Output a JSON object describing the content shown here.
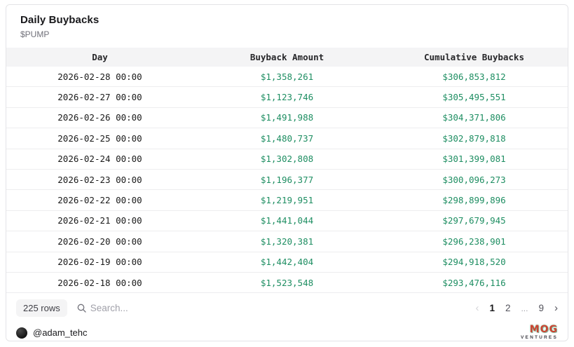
{
  "card": {
    "title": "Daily Buybacks",
    "subtitle": "$PUMP"
  },
  "table": {
    "columns": [
      "Day",
      "Buyback Amount",
      "Cumulative Buybacks"
    ],
    "rows": [
      {
        "day": "2026-02-28 00:00",
        "buyback": "$1,358,261",
        "cumulative": "$306,853,812"
      },
      {
        "day": "2026-02-27 00:00",
        "buyback": "$1,123,746",
        "cumulative": "$305,495,551"
      },
      {
        "day": "2026-02-26 00:00",
        "buyback": "$1,491,988",
        "cumulative": "$304,371,806"
      },
      {
        "day": "2026-02-25 00:00",
        "buyback": "$1,480,737",
        "cumulative": "$302,879,818"
      },
      {
        "day": "2026-02-24 00:00",
        "buyback": "$1,302,808",
        "cumulative": "$301,399,081"
      },
      {
        "day": "2026-02-23 00:00",
        "buyback": "$1,196,377",
        "cumulative": "$300,096,273"
      },
      {
        "day": "2026-02-22 00:00",
        "buyback": "$1,219,951",
        "cumulative": "$298,899,896"
      },
      {
        "day": "2026-02-21 00:00",
        "buyback": "$1,441,044",
        "cumulative": "$297,679,945"
      },
      {
        "day": "2026-02-20 00:00",
        "buyback": "$1,320,381",
        "cumulative": "$296,238,901"
      },
      {
        "day": "2026-02-19 00:00",
        "buyback": "$1,442,404",
        "cumulative": "$294,918,520"
      },
      {
        "day": "2026-02-18 00:00",
        "buyback": "$1,523,548",
        "cumulative": "$293,476,116"
      }
    ]
  },
  "footer": {
    "row_count": "225 rows",
    "search_placeholder": "Search...",
    "pagination": {
      "prev": "‹",
      "pages": [
        "1",
        "2",
        "...",
        "9"
      ],
      "active_page": "1",
      "next": "›"
    }
  },
  "attribution": {
    "handle": "@adam_tehc"
  },
  "logo": {
    "text": "MOG",
    "subtext": "VENTURES"
  },
  "colors": {
    "value_green": "#1e8e62",
    "header_bg": "#f4f4f5",
    "border": "#e4e4e7"
  }
}
